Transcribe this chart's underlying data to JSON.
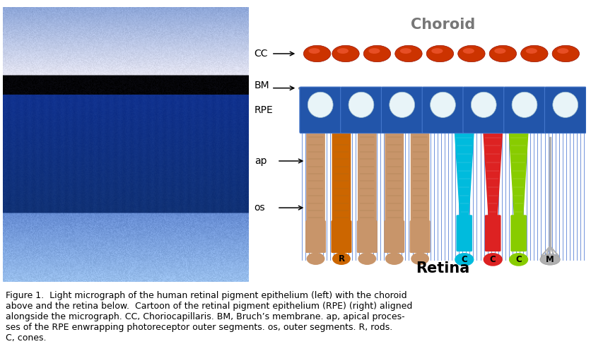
{
  "bg_color": "#ffffff",
  "choroid_label": "Choroid",
  "retina_label": "Retina",
  "cc_label": "CC",
  "bm_label": "BM",
  "rpe_label": "RPE",
  "ap_label": "ap",
  "os_label": "os",
  "caption": "Figure 1.  Light micrograph of the human retinal pigment epithelium (left) with the choroid\nabove and the retina below.  Cartoon of the retinal pigment epithelium (RPE) (right) aligned\nalongside the micrograph. CC, Choriocapillaris. BM, Bruch’s membrane. ap, apical proces-\nses of the RPE enwrapping photoreceptor outer segments. os, outer segments. R, rods.\nC, cones.",
  "rbc_color": "#cc2200",
  "rpe_cell_color": "#2255aa",
  "cone_cyan": "#00bbdd",
  "cone_red": "#dd2222",
  "cone_green": "#88cc00",
  "rod_tan": "#c8956a",
  "rod_orange": "#cc6600",
  "fig_width": 8.37,
  "fig_height": 4.87
}
